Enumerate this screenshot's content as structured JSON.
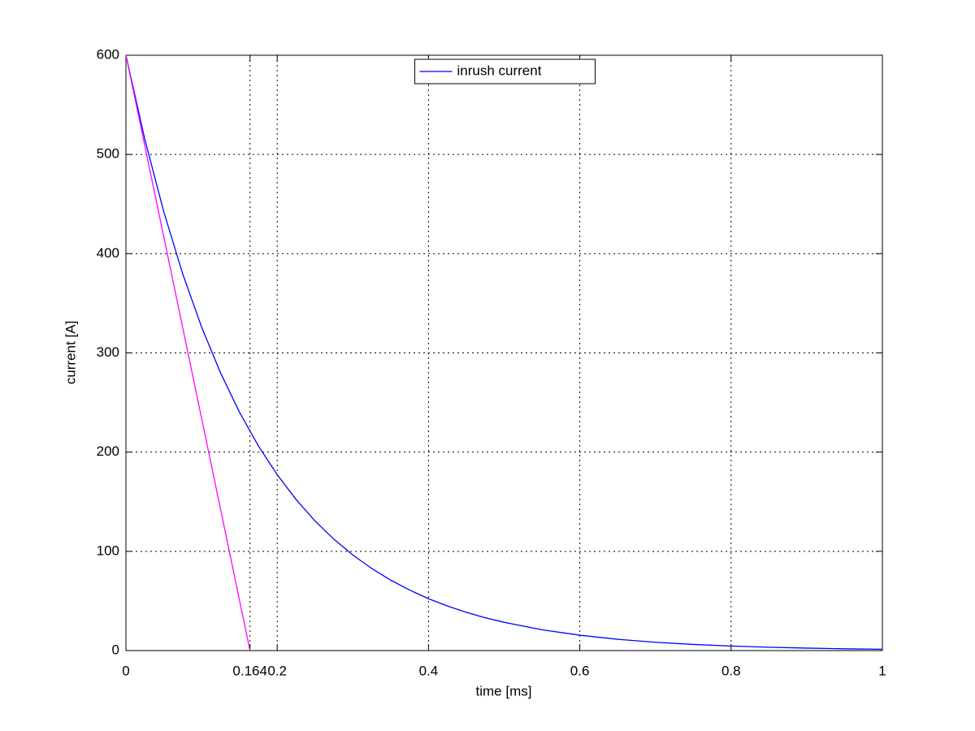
{
  "chart_data": {
    "type": "line",
    "xlabel": "time [ms]",
    "ylabel": "current [A]",
    "xlim": [
      0,
      1
    ],
    "ylim": [
      0,
      600
    ],
    "xticks": [
      0,
      0.164,
      0.2,
      0.4,
      0.6,
      0.8,
      1
    ],
    "yticks": [
      0,
      100,
      200,
      300,
      400,
      500,
      600
    ],
    "grid": true,
    "legend": "top-center",
    "series": [
      {
        "name": "inrush current",
        "color": "#0000ff",
        "x": [
          0,
          0.025,
          0.05,
          0.075,
          0.1,
          0.125,
          0.15,
          0.175,
          0.2,
          0.225,
          0.25,
          0.275,
          0.3,
          0.325,
          0.35,
          0.375,
          0.4,
          0.425,
          0.45,
          0.475,
          0.5,
          0.55,
          0.6,
          0.65,
          0.7,
          0.75,
          0.8,
          0.85,
          0.9,
          0.95,
          1
        ],
        "values": [
          600,
          515.2,
          442.3,
          379.8,
          326.1,
          280.0,
          240.4,
          206.4,
          177.2,
          152.2,
          130.6,
          112.2,
          96.3,
          82.7,
          71.0,
          61.0,
          52.3,
          44.9,
          38.6,
          33.1,
          28.5,
          21.0,
          15.5,
          11.4,
          8.4,
          6.2,
          4.6,
          3.4,
          2.5,
          1.8,
          1.3
        ]
      },
      {
        "color": "#ff00ff",
        "x": [
          0,
          0.164
        ],
        "values": [
          600,
          0
        ]
      }
    ]
  }
}
